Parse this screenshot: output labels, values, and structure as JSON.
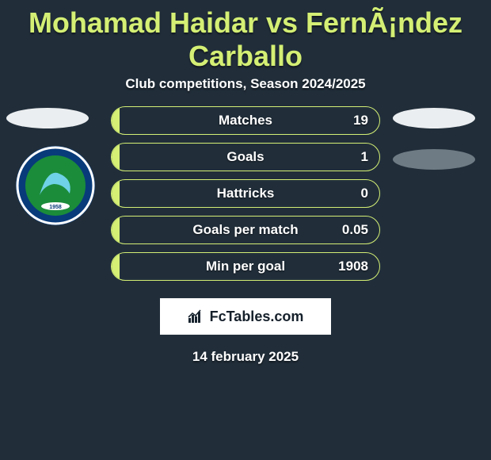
{
  "title": "Mohamad Haidar vs FernÃ¡ndez Carballo",
  "subtitle": "Club competitions, Season 2024/2025",
  "colors": {
    "background": "#212e3a",
    "accent": "#d4ef74",
    "text": "#ffffff",
    "pill_light": "#ebeef0",
    "pill_dark": "#6e7b84",
    "logo_outer": "#083b7a",
    "logo_inner": "#1b8c3a"
  },
  "stats": [
    {
      "label": "Matches",
      "value": "19",
      "fill_pct": 3
    },
    {
      "label": "Goals",
      "value": "1",
      "fill_pct": 3
    },
    {
      "label": "Hattricks",
      "value": "0",
      "fill_pct": 3
    },
    {
      "label": "Goals per match",
      "value": "0.05",
      "fill_pct": 3
    },
    {
      "label": "Min per goal",
      "value": "1908",
      "fill_pct": 3
    }
  ],
  "footer_brand": "FcTables.com",
  "date": "14 february 2025",
  "club_logo_name": "alfateh-fc"
}
